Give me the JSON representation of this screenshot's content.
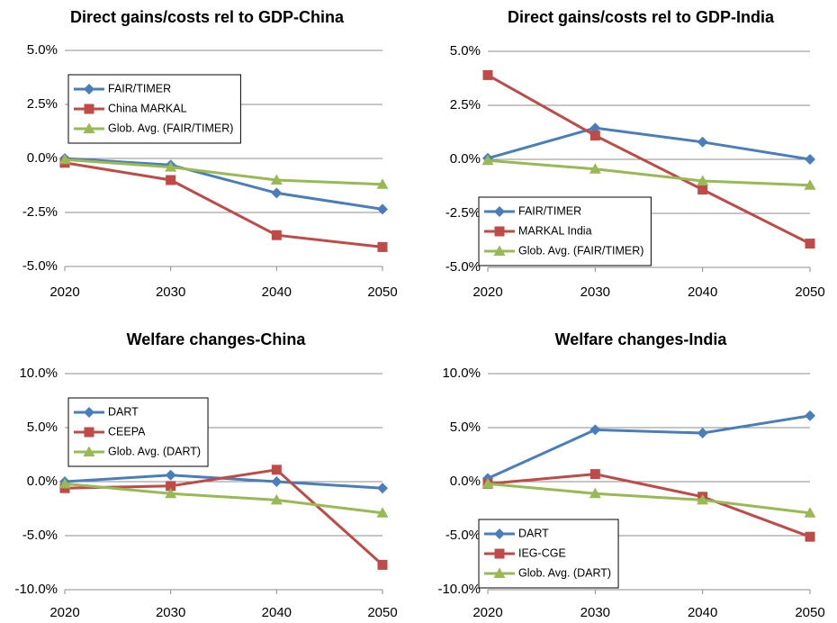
{
  "chart_data": [
    {
      "type": "line",
      "title": "Direct gains/costs rel to GDP-China",
      "x": [
        2020,
        2030,
        2040,
        2050
      ],
      "xlim": [
        2020,
        2050
      ],
      "xticks": [
        2020,
        2030,
        2040,
        2050
      ],
      "ylim": [
        -5,
        5
      ],
      "yticks": [
        {
          "value": -5,
          "label": "-5.0%"
        },
        {
          "value": -2.5,
          "label": "-2.5%"
        },
        {
          "value": 0,
          "label": "0.0%"
        },
        {
          "value": 2.5,
          "label": "2.5%"
        },
        {
          "value": 5,
          "label": "5.0%"
        }
      ],
      "grid": true,
      "legend": "upper left",
      "series": [
        {
          "name": "FAIR/TIMER",
          "color": "#4a7ebb",
          "marker": "diamond",
          "values": [
            0,
            -0.3,
            -1.6,
            -2.35
          ]
        },
        {
          "name": "China MARKAL",
          "color": "#be4b48",
          "marker": "square",
          "values": [
            -0.2,
            -1.0,
            -3.55,
            -4.1
          ]
        },
        {
          "name": "Glob. Avg. (FAIR/TIMER)",
          "color": "#98b954",
          "marker": "triangle",
          "values": [
            -0.05,
            -0.4,
            -1.0,
            -1.2
          ]
        }
      ]
    },
    {
      "type": "line",
      "title": "Direct gains/costs rel to GDP-India",
      "x": [
        2020,
        2030,
        2040,
        2050
      ],
      "xlim": [
        2020,
        2050
      ],
      "xticks": [
        2020,
        2030,
        2040,
        2050
      ],
      "ylim": [
        -5,
        5
      ],
      "yticks": [
        {
          "value": -5,
          "label": "-5.0%"
        },
        {
          "value": -2.5,
          "label": "-2.5%"
        },
        {
          "value": 0,
          "label": "0.0%"
        },
        {
          "value": 2.5,
          "label": "2.5%"
        },
        {
          "value": 5,
          "label": "5.0%"
        }
      ],
      "grid": true,
      "legend": "lower left",
      "series": [
        {
          "name": "FAIR/TIMER",
          "color": "#4a7ebb",
          "marker": "diamond",
          "values": [
            0.05,
            1.45,
            0.8,
            0.0
          ]
        },
        {
          "name": "MARKAL India",
          "color": "#be4b48",
          "marker": "square",
          "values": [
            3.9,
            1.1,
            -1.4,
            -3.9
          ]
        },
        {
          "name": "Glob. Avg. (FAIR/TIMER)",
          "color": "#98b954",
          "marker": "triangle",
          "values": [
            -0.05,
            -0.45,
            -1.0,
            -1.2
          ]
        }
      ]
    },
    {
      "type": "line",
      "title": "Welfare changes-China",
      "x": [
        2020,
        2030,
        2040,
        2050
      ],
      "xlim": [
        2020,
        2050
      ],
      "xticks": [
        2020,
        2030,
        2040,
        2050
      ],
      "ylim": [
        -10,
        10
      ],
      "yticks": [
        {
          "value": -10,
          "label": "-10.0%"
        },
        {
          "value": -5,
          "label": "-5.0%"
        },
        {
          "value": 0,
          "label": "0.0%"
        },
        {
          "value": 5,
          "label": "5.0%"
        },
        {
          "value": 10,
          "label": "10.0%"
        }
      ],
      "grid": true,
      "legend": "upper left",
      "series": [
        {
          "name": "DART",
          "color": "#4a7ebb",
          "marker": "diamond",
          "values": [
            0,
            0.6,
            0,
            -0.6
          ]
        },
        {
          "name": "CEEPA",
          "color": "#be4b48",
          "marker": "square",
          "values": [
            -0.6,
            -0.4,
            1.1,
            -7.7
          ]
        },
        {
          "name": "Glob. Avg. (DART)",
          "color": "#98b954",
          "marker": "triangle",
          "values": [
            -0.2,
            -1.1,
            -1.7,
            -2.9
          ]
        }
      ]
    },
    {
      "type": "line",
      "title": "Welfare changes-India",
      "x": [
        2020,
        2030,
        2040,
        2050
      ],
      "xlim": [
        2020,
        2050
      ],
      "xticks": [
        2020,
        2030,
        2040,
        2050
      ],
      "ylim": [
        -10,
        10
      ],
      "yticks": [
        {
          "value": -10,
          "label": "-10.0%"
        },
        {
          "value": -5,
          "label": "-5.0%"
        },
        {
          "value": 0,
          "label": "0.0%"
        },
        {
          "value": 5,
          "label": "5.0%"
        },
        {
          "value": 10,
          "label": "10.0%"
        }
      ],
      "grid": true,
      "legend": "lower left",
      "series": [
        {
          "name": "DART",
          "color": "#4a7ebb",
          "marker": "diamond",
          "values": [
            0.3,
            4.8,
            4.5,
            6.1
          ]
        },
        {
          "name": "IEG-CGE",
          "color": "#be4b48",
          "marker": "square",
          "values": [
            -0.2,
            0.7,
            -1.4,
            -5.1
          ]
        },
        {
          "name": "Glob. Avg. (DART)",
          "color": "#98b954",
          "marker": "triangle",
          "values": [
            -0.2,
            -1.1,
            -1.7,
            -2.9
          ]
        }
      ]
    }
  ]
}
